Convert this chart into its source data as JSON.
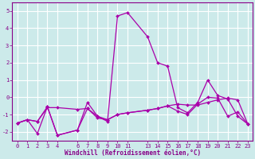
{
  "xlabel": "Windchill (Refroidissement éolien,°C)",
  "background_color": "#cceaea",
  "line_color": "#aa00aa",
  "grid_color": "#ffffff",
  "series": [
    {
      "x": [
        0,
        1,
        2,
        3,
        4,
        6,
        7,
        8,
        9,
        10,
        11,
        13,
        14,
        15,
        16,
        17,
        18,
        19,
        20,
        21,
        22,
        23
      ],
      "y": [
        -1.5,
        -1.3,
        -1.4,
        -0.6,
        -0.6,
        -0.7,
        -0.65,
        -1.1,
        -1.3,
        -1.0,
        -0.9,
        -0.75,
        -0.65,
        -0.5,
        -0.4,
        -0.45,
        -0.45,
        -0.3,
        -0.15,
        -0.05,
        -0.15,
        -1.55
      ]
    },
    {
      "x": [
        0,
        1,
        2,
        3,
        4,
        6,
        7,
        8,
        9,
        10,
        11,
        13,
        14,
        15,
        16,
        17,
        18,
        19,
        20,
        21,
        22,
        23
      ],
      "y": [
        -1.5,
        -1.3,
        -1.4,
        -0.55,
        -2.2,
        -1.9,
        -0.65,
        -1.2,
        -1.3,
        -1.0,
        -0.9,
        -0.75,
        -0.65,
        -0.5,
        -0.8,
        -1.0,
        -0.4,
        0.0,
        -0.05,
        -1.1,
        -0.85,
        -1.55
      ]
    },
    {
      "x": [
        0,
        1,
        2,
        3,
        4,
        6,
        7,
        8,
        9,
        10,
        11,
        13,
        14,
        15,
        16,
        17,
        18,
        19,
        20,
        21,
        22,
        23
      ],
      "y": [
        -1.5,
        -1.3,
        -2.1,
        -0.55,
        -2.2,
        -1.9,
        -0.3,
        -1.1,
        -1.4,
        4.7,
        4.9,
        3.5,
        2.0,
        1.8,
        -0.6,
        -0.9,
        -0.3,
        1.0,
        0.1,
        -0.1,
        -1.1,
        -1.55
      ]
    }
  ],
  "xlim": [
    -0.5,
    23.5
  ],
  "ylim": [
    -2.5,
    5.5
  ],
  "yticks": [
    -2,
    -1,
    0,
    1,
    2,
    3,
    4,
    5
  ],
  "xtick_positions": [
    0,
    1,
    2,
    3,
    4,
    6,
    7,
    8,
    9,
    10,
    11,
    13,
    14,
    15,
    16,
    17,
    18,
    19,
    20,
    21,
    22,
    23
  ],
  "xtick_labels": [
    "0",
    "1",
    "2",
    "3",
    "4",
    "6",
    "7",
    "8",
    "9",
    "10",
    "11",
    "13",
    "14",
    "15",
    "16",
    "17",
    "18",
    "19",
    "20",
    "21",
    "22",
    "23"
  ],
  "text_color": "#880088",
  "spine_color": "#880088",
  "label_fontsize": 5.5,
  "tick_fontsize": 5.0
}
